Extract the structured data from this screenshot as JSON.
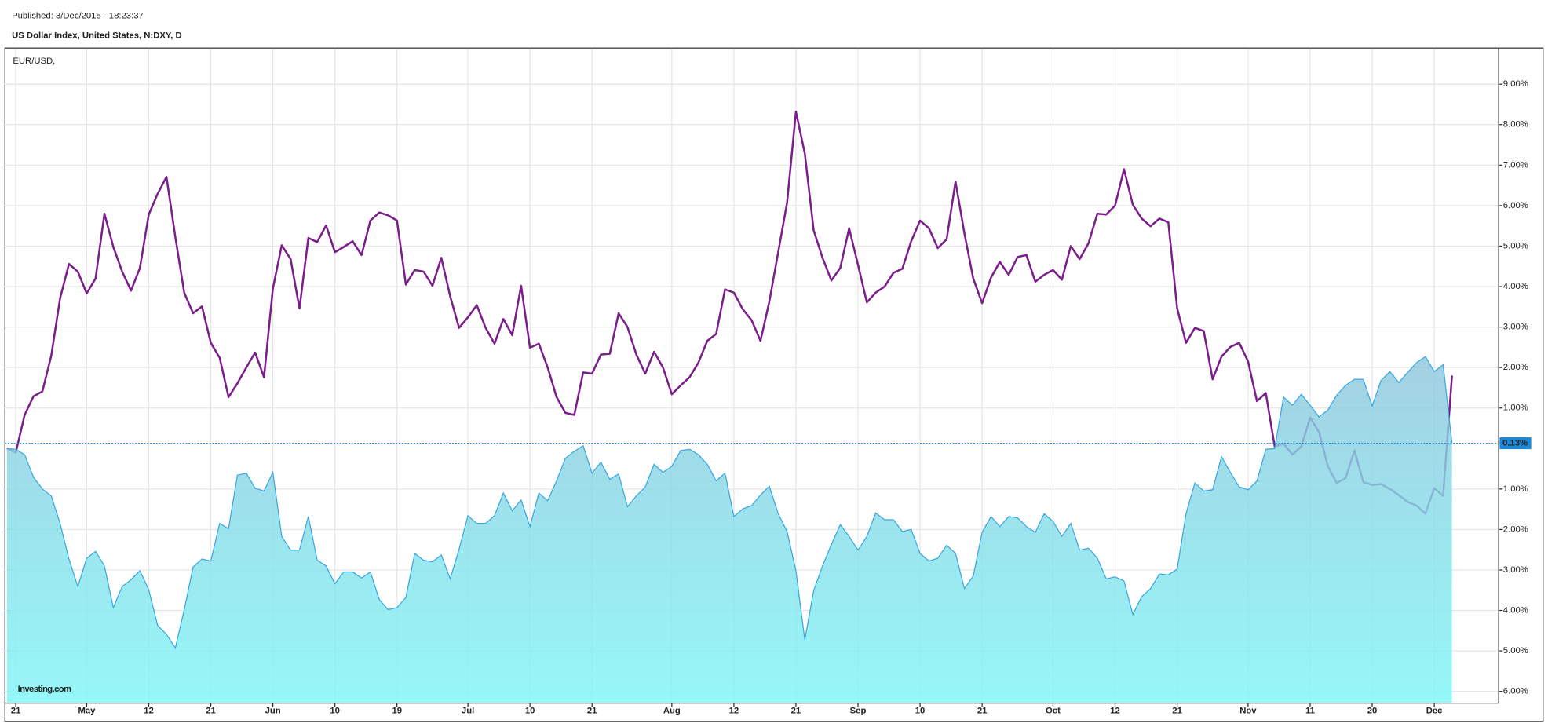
{
  "chart_data": {
    "type": "line",
    "subtitle": "Published: 3/Dec/2015 - 18:23:37",
    "title": "US Dollar Index, United States, N:DXY, D",
    "watermark": "Investing.com",
    "categories": [
      null,
      "21",
      null,
      null,
      null,
      null,
      null,
      null,
      null,
      "May",
      null,
      null,
      null,
      null,
      null,
      null,
      "12",
      null,
      null,
      null,
      null,
      null,
      null,
      "21",
      null,
      null,
      null,
      null,
      null,
      null,
      "Jun",
      null,
      null,
      null,
      null,
      null,
      null,
      "10",
      null,
      null,
      null,
      null,
      null,
      null,
      "19",
      null,
      null,
      null,
      null,
      null,
      null,
      null,
      "Jul",
      null,
      null,
      null,
      null,
      null,
      null,
      "10",
      null,
      null,
      null,
      null,
      null,
      null,
      "21",
      null,
      null,
      null,
      null,
      null,
      null,
      null,
      null,
      "Aug",
      null,
      null,
      null,
      null,
      null,
      null,
      "12",
      null,
      null,
      null,
      null,
      null,
      null,
      "21",
      null,
      null,
      null,
      null,
      null,
      null,
      "Sep",
      null,
      null,
      null,
      null,
      null,
      null,
      "10",
      null,
      null,
      null,
      null,
      null,
      null,
      "21",
      null,
      null,
      null,
      null,
      null,
      null,
      null,
      "Oct",
      null,
      null,
      null,
      null,
      null,
      null,
      "12",
      null,
      null,
      null,
      null,
      null,
      null,
      "21",
      null,
      null,
      null,
      null,
      null,
      null,
      null,
      "Nov",
      null,
      null,
      null,
      null,
      null,
      null,
      "11",
      null,
      null,
      null,
      null,
      null,
      null,
      "20",
      null,
      null,
      null,
      null,
      null,
      null,
      "Dec",
      null,
      null
    ],
    "series": [
      {
        "name": "EUR/USD,",
        "type": "line",
        "color": "#7b1d8a",
        "values": [
          0.0,
          -0.1,
          0.83,
          1.29,
          1.41,
          2.29,
          3.71,
          4.56,
          4.37,
          3.83,
          4.2,
          5.8,
          4.98,
          4.37,
          3.9,
          4.46,
          5.78,
          6.29,
          6.71,
          5.22,
          3.85,
          3.34,
          3.51,
          2.61,
          2.24,
          1.27,
          1.61,
          2.0,
          2.37,
          1.76,
          3.95,
          5.02,
          4.68,
          3.46,
          5.2,
          5.1,
          5.51,
          4.85,
          4.98,
          5.12,
          4.78,
          5.63,
          5.83,
          5.76,
          5.63,
          4.05,
          4.41,
          4.37,
          4.02,
          4.71,
          3.76,
          2.98,
          3.24,
          3.54,
          2.98,
          2.59,
          3.2,
          2.8,
          4.02,
          2.49,
          2.59,
          2.0,
          1.27,
          0.88,
          0.83,
          1.88,
          1.85,
          2.32,
          2.34,
          3.34,
          3.0,
          2.32,
          1.85,
          2.39,
          2.0,
          1.34,
          1.56,
          1.76,
          2.12,
          2.66,
          2.83,
          3.93,
          3.85,
          3.44,
          3.17,
          2.66,
          3.63,
          4.85,
          6.07,
          8.32,
          7.29,
          5.39,
          4.71,
          4.15,
          4.46,
          5.44,
          4.54,
          3.61,
          3.85,
          4.0,
          4.34,
          4.44,
          5.12,
          5.63,
          5.44,
          4.95,
          5.17,
          6.59,
          5.32,
          4.2,
          3.59,
          4.22,
          4.61,
          4.29,
          4.73,
          4.78,
          4.12,
          4.29,
          4.41,
          4.17,
          5.0,
          4.68,
          5.07,
          5.8,
          5.78,
          6.0,
          6.9,
          6.02,
          5.68,
          5.49,
          5.68,
          5.59,
          3.46,
          2.61,
          2.98,
          2.9,
          1.71,
          2.27,
          2.51,
          2.61,
          2.15,
          1.17,
          1.37,
          0.05,
          0.12,
          -0.15,
          0.05,
          0.76,
          0.41,
          -0.44,
          -0.85,
          -0.73,
          -0.05,
          -0.83,
          -0.9,
          -0.88,
          -1.0,
          -1.15,
          -1.32,
          -1.41,
          -1.61,
          -0.98,
          -1.17,
          1.8
        ]
      },
      {
        "type": "area",
        "color": "#3ba8e0",
        "values": [
          0.0,
          -0.02,
          -0.15,
          -0.71,
          -1.0,
          -1.17,
          -1.85,
          -2.73,
          -3.41,
          -2.71,
          -2.54,
          -2.9,
          -3.93,
          -3.41,
          -3.24,
          -3.02,
          -3.49,
          -4.37,
          -4.59,
          -4.93,
          -3.98,
          -2.93,
          -2.73,
          -2.78,
          -1.85,
          -1.98,
          -0.66,
          -0.61,
          -0.98,
          -1.05,
          -0.59,
          -2.17,
          -2.51,
          -2.51,
          -1.68,
          -2.76,
          -2.9,
          -3.34,
          -3.05,
          -3.05,
          -3.2,
          -3.05,
          -3.73,
          -3.98,
          -3.93,
          -3.68,
          -2.59,
          -2.76,
          -2.8,
          -2.63,
          -3.22,
          -2.49,
          -1.66,
          -1.85,
          -1.85,
          -1.66,
          -1.1,
          -1.54,
          -1.27,
          -1.93,
          -1.1,
          -1.29,
          -0.8,
          -0.24,
          -0.07,
          0.07,
          -0.61,
          -0.34,
          -0.76,
          -0.63,
          -1.44,
          -1.17,
          -0.95,
          -0.39,
          -0.59,
          -0.44,
          -0.05,
          -0.02,
          -0.15,
          -0.39,
          -0.8,
          -0.61,
          -1.68,
          -1.49,
          -1.41,
          -1.15,
          -0.93,
          -1.61,
          -2.05,
          -3.02,
          -4.73,
          -3.51,
          -2.9,
          -2.37,
          -1.88,
          -2.17,
          -2.51,
          -2.17,
          -1.59,
          -1.76,
          -1.76,
          -2.05,
          -2.0,
          -2.59,
          -2.78,
          -2.71,
          -2.39,
          -2.59,
          -3.46,
          -3.15,
          -2.07,
          -1.68,
          -1.93,
          -1.68,
          -1.71,
          -1.93,
          -2.07,
          -1.61,
          -1.8,
          -2.17,
          -1.85,
          -2.51,
          -2.46,
          -2.71,
          -3.22,
          -3.17,
          -3.27,
          -4.1,
          -3.66,
          -3.46,
          -3.1,
          -3.12,
          -2.98,
          -1.61,
          -0.85,
          -1.05,
          -1.02,
          -0.2,
          -0.59,
          -0.95,
          -1.02,
          -0.8,
          -0.02,
          0.0,
          1.27,
          1.07,
          1.34,
          1.07,
          0.78,
          0.95,
          1.32,
          1.56,
          1.71,
          1.71,
          1.05,
          1.68,
          1.9,
          1.63,
          1.88,
          2.12,
          2.27,
          1.9,
          2.07,
          0.13
        ]
      }
    ],
    "ylim": [
      -6.29,
      9.88
    ],
    "yticks": [
      {
        "value": -6,
        "label": "-6.00%"
      },
      {
        "value": -5,
        "label": "-5.00%"
      },
      {
        "value": -4,
        "label": "-4.00%"
      },
      {
        "value": -3,
        "label": "-3.00%"
      },
      {
        "value": -2,
        "label": "-2.00%"
      },
      {
        "value": -1,
        "label": "-1.00%"
      },
      {
        "value": 1,
        "label": "1.00%"
      },
      {
        "value": 2,
        "label": "2.00%"
      },
      {
        "value": 3,
        "label": "3.00%"
      },
      {
        "value": 4,
        "label": "4.00%"
      },
      {
        "value": 5,
        "label": "5.00%"
      },
      {
        "value": 6,
        "label": "6.00%"
      },
      {
        "value": 7,
        "label": "7.00%"
      },
      {
        "value": 8,
        "label": "8.00%"
      },
      {
        "value": 9,
        "label": "9.00%"
      }
    ],
    "grid": true,
    "reference_line": {
      "value": 0.13,
      "label": "0.13%"
    }
  }
}
